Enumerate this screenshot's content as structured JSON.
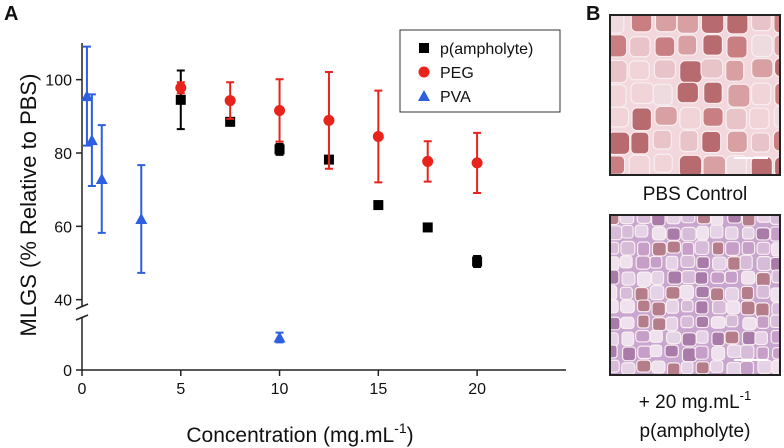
{
  "chart_data": {
    "type": "scatter",
    "panel_label": "A",
    "y_label": "MLGS (% Relative to PBS)",
    "x_label_parts": [
      "Concentration (mg.mL",
      "-1",
      ")"
    ],
    "xlim": [
      0,
      24.5
    ],
    "xticks": [
      0,
      5,
      10,
      15,
      20
    ],
    "ylim": [
      0,
      110
    ],
    "ybreak": [
      16,
      38
    ],
    "yticks": [
      0,
      40,
      60,
      80,
      100
    ],
    "legend": "upper right",
    "series": [
      {
        "name": "p(ampholyte)",
        "color": "#000000",
        "marker": "square",
        "x": [
          5,
          7.5,
          10,
          12.5,
          15,
          17.5,
          20
        ],
        "values": [
          94.5,
          88.5,
          81,
          78.2,
          65.8,
          59.7,
          50.4
        ],
        "errors": [
          8,
          1,
          1.5,
          0.5,
          0.5,
          0.5,
          1.5
        ]
      },
      {
        "name": "PEG",
        "color": "#e8231c",
        "marker": "circle",
        "x": [
          5,
          7.5,
          10,
          12.5,
          15,
          17.5,
          20
        ],
        "values": [
          97.8,
          94.3,
          91.6,
          88.9,
          84.5,
          77.7,
          77.3
        ],
        "errors": [
          1.5,
          5,
          8.5,
          13.2,
          12.5,
          5.5,
          8.2
        ]
      },
      {
        "name": "PVA",
        "color": "#2e5fe0",
        "marker": "triangle",
        "x": [
          0.25,
          0.5,
          1,
          3,
          10
        ],
        "values": [
          95.5,
          83.5,
          72.9,
          62,
          10
        ],
        "errors": [
          13.5,
          12.5,
          14.7,
          14.7,
          1.5
        ]
      }
    ]
  },
  "panel_b": {
    "label": "B",
    "caption_top": "PBS Control",
    "caption_bottom_parts": [
      "+ 20 mg.mL",
      "-1"
    ],
    "caption_bottom_line2": "p(ampholyte)"
  }
}
